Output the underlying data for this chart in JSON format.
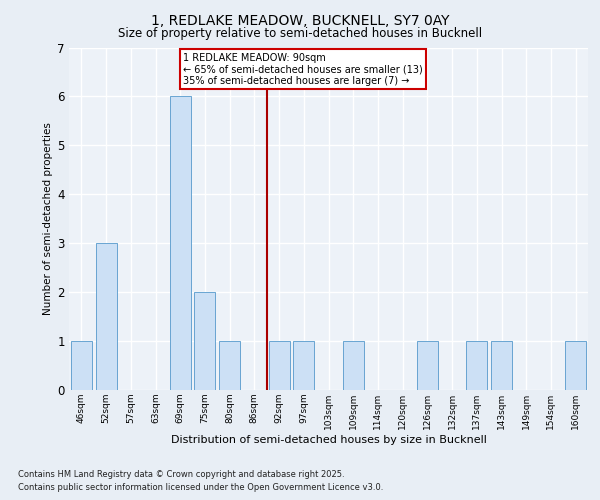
{
  "title_line1": "1, REDLAKE MEADOW, BUCKNELL, SY7 0AY",
  "title_line2": "Size of property relative to semi-detached houses in Bucknell",
  "xlabel": "Distribution of semi-detached houses by size in Bucknell",
  "ylabel": "Number of semi-detached properties",
  "categories": [
    "46sqm",
    "52sqm",
    "57sqm",
    "63sqm",
    "69sqm",
    "75sqm",
    "80sqm",
    "86sqm",
    "92sqm",
    "97sqm",
    "103sqm",
    "109sqm",
    "114sqm",
    "120sqm",
    "126sqm",
    "132sqm",
    "137sqm",
    "143sqm",
    "149sqm",
    "154sqm",
    "160sqm"
  ],
  "values": [
    1,
    3,
    0,
    0,
    6,
    2,
    1,
    0,
    1,
    1,
    0,
    1,
    0,
    0,
    1,
    0,
    1,
    1,
    0,
    0,
    1
  ],
  "bar_color": "#cce0f5",
  "bar_edge_color": "#5599cc",
  "vline_pos": 7.5,
  "vline_color": "#aa0000",
  "ylim": [
    0,
    7
  ],
  "yticks": [
    0,
    1,
    2,
    3,
    4,
    5,
    6,
    7
  ],
  "annotation_title": "1 REDLAKE MEADOW: 90sqm",
  "annotation_line2": "← 65% of semi-detached houses are smaller (13)",
  "annotation_line3": "35% of semi-detached houses are larger (7) →",
  "annotation_box_color": "#ffffff",
  "annotation_box_edge": "#cc0000",
  "footer_line1": "Contains HM Land Registry data © Crown copyright and database right 2025.",
  "footer_line2": "Contains public sector information licensed under the Open Government Licence v3.0.",
  "bg_color": "#e8eef5",
  "plot_bg_color": "#edf2f8"
}
